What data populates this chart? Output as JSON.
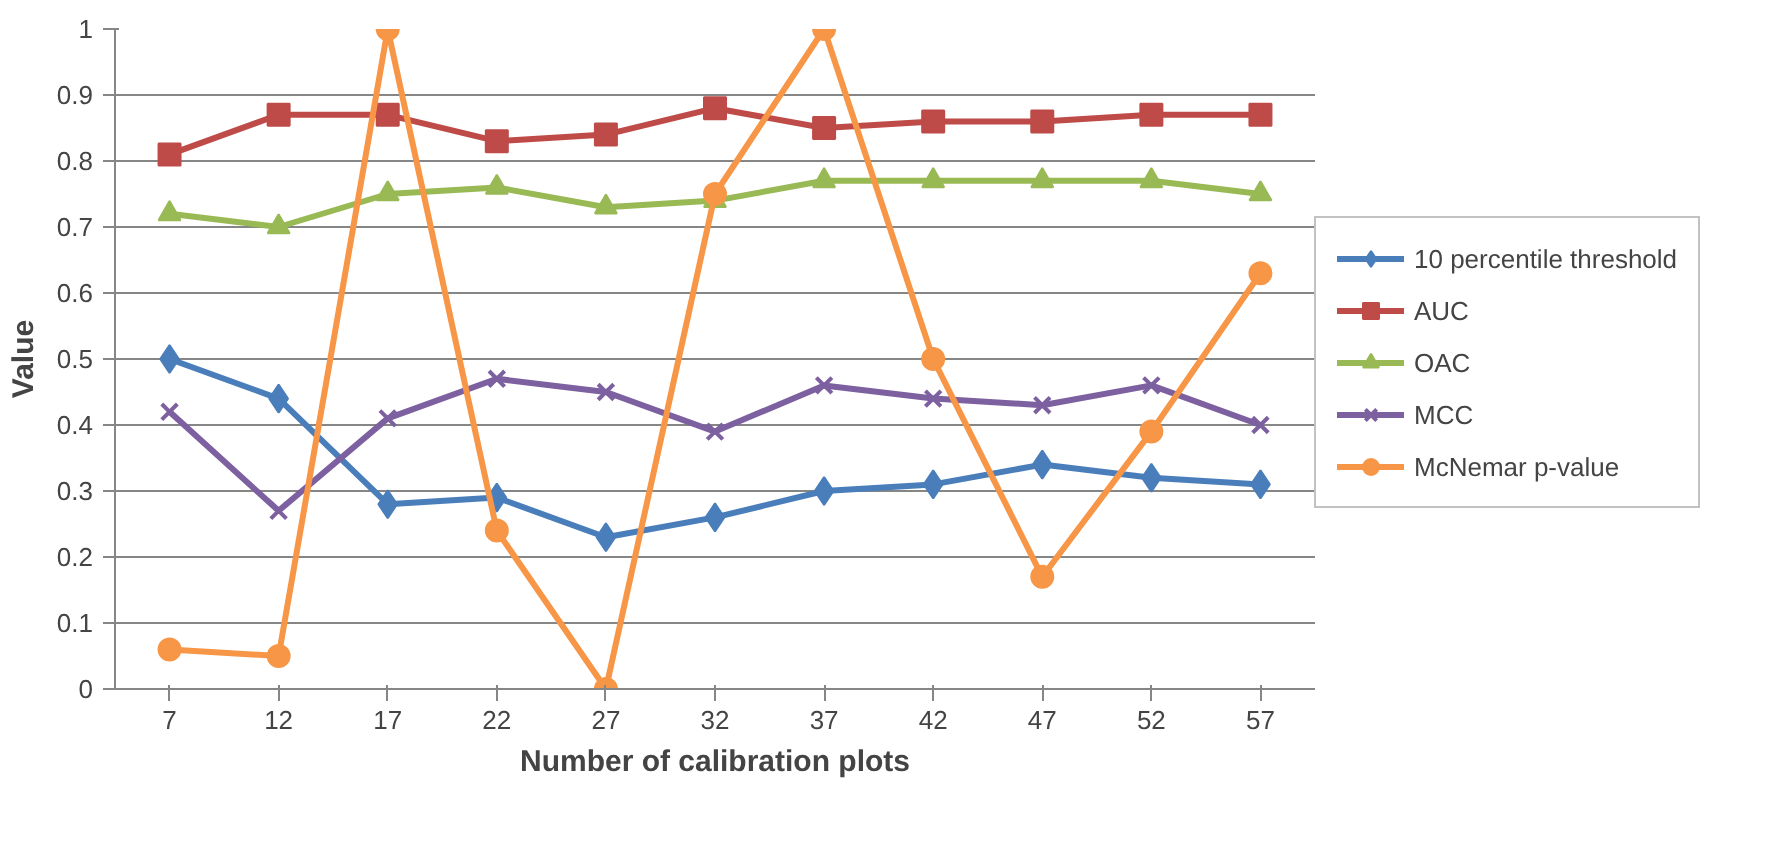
{
  "chart_data": {
    "type": "line",
    "xlabel": "Number of calibration plots",
    "ylabel": "Value",
    "categories": [
      "7",
      "12",
      "17",
      "22",
      "27",
      "32",
      "37",
      "42",
      "47",
      "52",
      "57"
    ],
    "series": [
      {
        "name": "10 percentile threshold",
        "color": "#4a7ebb",
        "marker": "diamond",
        "values": [
          0.5,
          0.44,
          0.28,
          0.29,
          0.23,
          0.26,
          0.3,
          0.31,
          0.34,
          0.32,
          0.31
        ]
      },
      {
        "name": "AUC",
        "color": "#be4b48",
        "marker": "square",
        "values": [
          0.81,
          0.87,
          0.87,
          0.83,
          0.84,
          0.88,
          0.85,
          0.86,
          0.86,
          0.87,
          0.87
        ]
      },
      {
        "name": "OAC",
        "color": "#98b954",
        "marker": "triangle",
        "values": [
          0.72,
          0.7,
          0.75,
          0.76,
          0.73,
          0.74,
          0.77,
          0.77,
          0.77,
          0.77,
          0.75
        ]
      },
      {
        "name": "MCC",
        "color": "#7d60a0",
        "marker": "cross",
        "values": [
          0.42,
          0.27,
          0.41,
          0.47,
          0.45,
          0.39,
          0.46,
          0.44,
          0.43,
          0.46,
          0.4
        ]
      },
      {
        "name": "McNemar p-value",
        "color": "#f79646",
        "marker": "circle",
        "values": [
          0.06,
          0.05,
          1.0,
          0.24,
          0.0,
          0.75,
          1.0,
          0.5,
          0.17,
          0.39,
          0.63
        ]
      }
    ],
    "ylim": [
      0,
      1
    ],
    "yticks": [
      0,
      0.1,
      0.2,
      0.3,
      0.4,
      0.5,
      0.6,
      0.7,
      0.8,
      0.9,
      1
    ],
    "grid": "y",
    "legend": "right",
    "line_style": "solid"
  }
}
